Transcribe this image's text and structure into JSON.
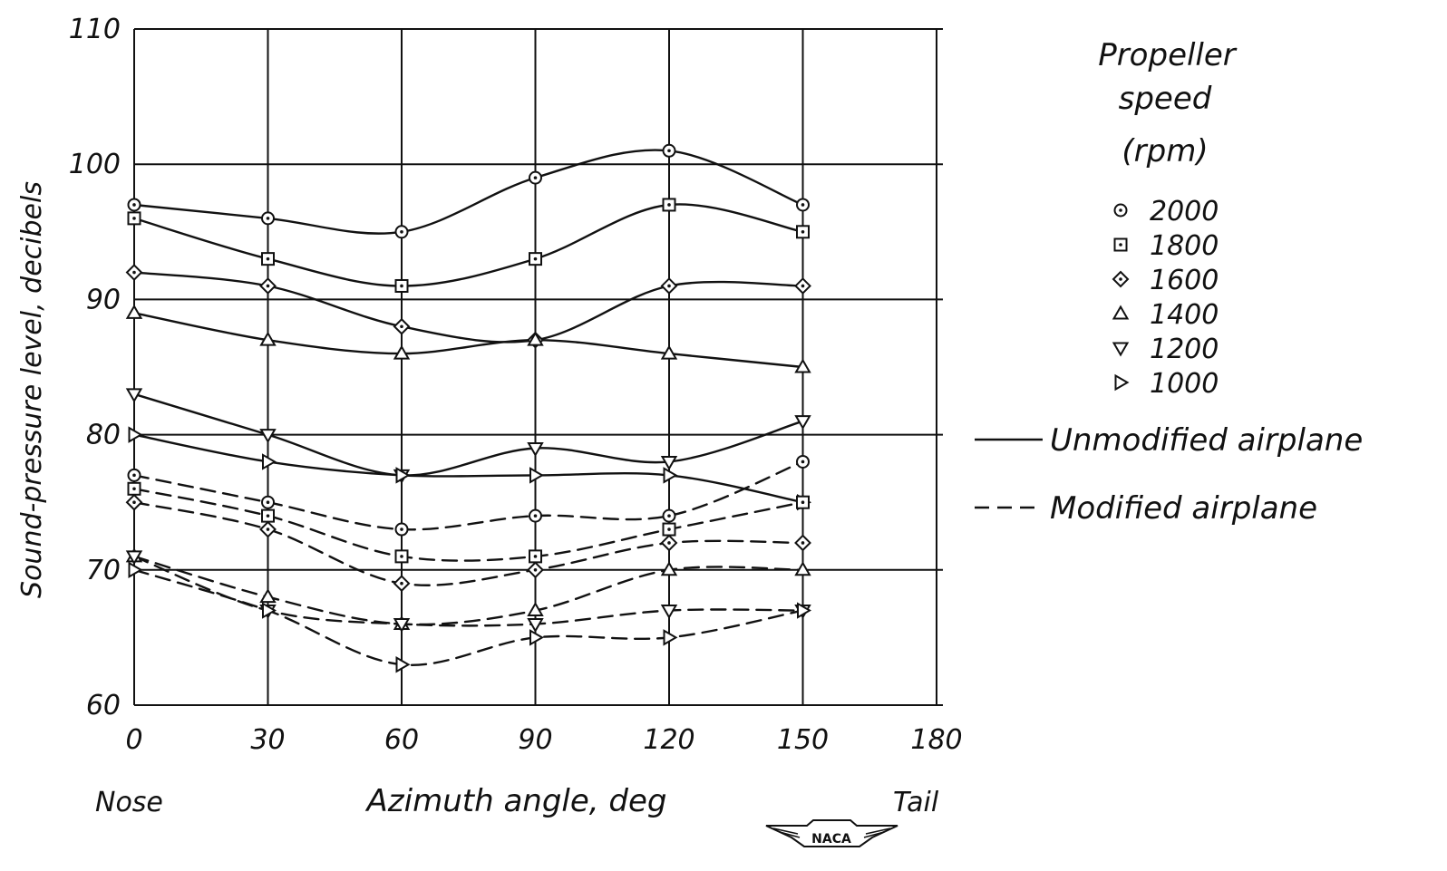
{
  "chart_data": {
    "type": "line",
    "title": "",
    "xlabel": "Azimuth angle, deg",
    "ylabel": "Sound-pressure level, decibels",
    "x_end_labels": {
      "left": "Nose",
      "right": "Tail"
    },
    "xlim": [
      0,
      180
    ],
    "ylim": [
      60,
      110
    ],
    "x_ticks": [
      0,
      30,
      60,
      90,
      120,
      150,
      180
    ],
    "x_tick_labels": [
      "0",
      "30",
      "60",
      "90",
      "120",
      "150",
      "180"
    ],
    "y_ticks": [
      60,
      70,
      80,
      90,
      100,
      110
    ],
    "y_tick_labels": [
      "60",
      "70",
      "80",
      "90",
      "100",
      "110"
    ],
    "grid": true,
    "x": [
      0,
      30,
      60,
      90,
      120,
      150
    ],
    "legend": {
      "title_lines": [
        "Propeller",
        "speed",
        "(rpm)"
      ],
      "markers": [
        {
          "label": "2000",
          "marker": "circle-dot"
        },
        {
          "label": "1800",
          "marker": "square-dot"
        },
        {
          "label": "1600",
          "marker": "diamond-dot"
        },
        {
          "label": "1400",
          "marker": "triangle-up"
        },
        {
          "label": "1200",
          "marker": "triangle-down"
        },
        {
          "label": "1000",
          "marker": "triangle-right"
        }
      ],
      "line_styles": [
        {
          "label": "Unmodified airplane",
          "style": "solid"
        },
        {
          "label": "Modified airplane",
          "style": "dashed"
        }
      ]
    },
    "series": [
      {
        "rpm": 2000,
        "condition": "unmodified",
        "marker": "circle-dot",
        "style": "solid",
        "values": [
          97,
          96,
          95,
          99,
          101,
          97
        ]
      },
      {
        "rpm": 1800,
        "condition": "unmodified",
        "marker": "square-dot",
        "style": "solid",
        "values": [
          96,
          93,
          91,
          93,
          97,
          95
        ]
      },
      {
        "rpm": 1600,
        "condition": "unmodified",
        "marker": "diamond-dot",
        "style": "solid",
        "values": [
          92,
          91,
          88,
          87,
          91,
          91
        ]
      },
      {
        "rpm": 1400,
        "condition": "unmodified",
        "marker": "triangle-up",
        "style": "solid",
        "values": [
          89,
          87,
          86,
          87,
          86,
          85
        ]
      },
      {
        "rpm": 1200,
        "condition": "unmodified",
        "marker": "triangle-down",
        "style": "solid",
        "values": [
          83,
          80,
          77,
          79,
          78,
          81
        ]
      },
      {
        "rpm": 1000,
        "condition": "unmodified",
        "marker": "triangle-right",
        "style": "solid",
        "values": [
          80,
          78,
          77,
          77,
          77,
          75
        ]
      },
      {
        "rpm": 2000,
        "condition": "modified",
        "marker": "circle-dot",
        "style": "dashed",
        "values": [
          77,
          75,
          73,
          74,
          74,
          78
        ]
      },
      {
        "rpm": 1800,
        "condition": "modified",
        "marker": "square-dot",
        "style": "dashed",
        "values": [
          76,
          74,
          71,
          71,
          73,
          75
        ]
      },
      {
        "rpm": 1600,
        "condition": "modified",
        "marker": "diamond-dot",
        "style": "dashed",
        "values": [
          75,
          73,
          69,
          70,
          72,
          72
        ]
      },
      {
        "rpm": 1400,
        "condition": "modified",
        "marker": "triangle-up",
        "style": "dashed",
        "values": [
          71,
          68,
          66,
          67,
          70,
          70
        ]
      },
      {
        "rpm": 1200,
        "condition": "modified",
        "marker": "triangle-down",
        "style": "dashed",
        "values": [
          71,
          67,
          66,
          66,
          67,
          67
        ]
      },
      {
        "rpm": 1000,
        "condition": "modified",
        "marker": "triangle-right",
        "style": "dashed",
        "values": [
          70,
          67,
          63,
          65,
          65,
          67
        ]
      }
    ]
  },
  "logo": {
    "text": "NACA"
  },
  "colors": {
    "ink": "#111111",
    "background": "#ffffff"
  }
}
